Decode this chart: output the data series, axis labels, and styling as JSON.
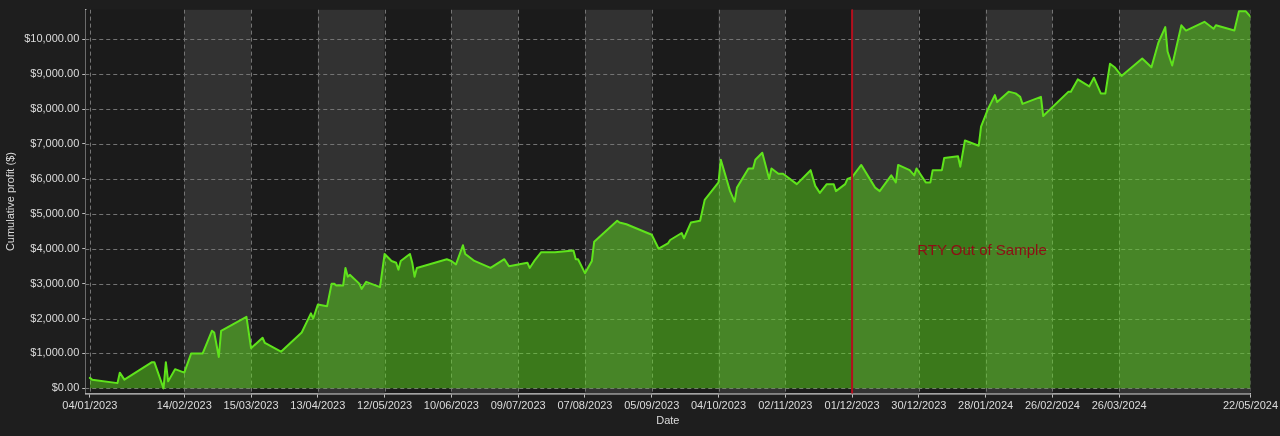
{
  "chart_data": {
    "type": "area",
    "xlabel": "Date",
    "ylabel": "Cumulative profit ($)",
    "color": "#5fe31c",
    "x": [
      "2023-01-04",
      "2023-01-05",
      "2023-01-16",
      "2023-01-17",
      "2023-01-19",
      "2023-01-31",
      "2023-02-01",
      "2023-02-05",
      "2023-02-06",
      "2023-02-07",
      "2023-02-10",
      "2023-02-14",
      "2023-02-17",
      "2023-02-22",
      "2023-02-26",
      "2023-02-27",
      "2023-03-01",
      "2023-03-02",
      "2023-03-13",
      "2023-03-15",
      "2023-03-20",
      "2023-03-21",
      "2023-03-28",
      "2023-04-06",
      "2023-04-10",
      "2023-04-11",
      "2023-04-13",
      "2023-04-17",
      "2023-04-19",
      "2023-04-20",
      "2023-04-21",
      "2023-04-24",
      "2023-04-25",
      "2023-04-26",
      "2023-04-27",
      "2023-05-01",
      "2023-05-02",
      "2023-05-04",
      "2023-05-10",
      "2023-05-12",
      "2023-05-15",
      "2023-05-17",
      "2023-05-18",
      "2023-05-19",
      "2023-05-23",
      "2023-05-24",
      "2023-05-25",
      "2023-05-26",
      "2023-06-08",
      "2023-06-10",
      "2023-06-12",
      "2023-06-15",
      "2023-06-16",
      "2023-06-20",
      "2023-06-27",
      "2023-07-03",
      "2023-07-05",
      "2023-07-13",
      "2023-07-14",
      "2023-07-16",
      "2023-07-19",
      "2023-07-25",
      "2023-08-02",
      "2023-08-03",
      "2023-08-04",
      "2023-08-07",
      "2023-08-10",
      "2023-08-11",
      "2023-08-21",
      "2023-08-22",
      "2023-08-25",
      "2023-09-05",
      "2023-09-08",
      "2023-09-12",
      "2023-09-13",
      "2023-09-18",
      "2023-09-19",
      "2023-09-22",
      "2023-09-26",
      "2023-09-28",
      "2023-10-04",
      "2023-10-05",
      "2023-10-09",
      "2023-10-11",
      "2023-10-12",
      "2023-10-17",
      "2023-10-19",
      "2023-10-20",
      "2023-10-23",
      "2023-10-24",
      "2023-10-26",
      "2023-10-27",
      "2023-10-30",
      "2023-11-01",
      "2023-11-07",
      "2023-11-13",
      "2023-11-15",
      "2023-11-17",
      "2023-11-20",
      "2023-11-23",
      "2023-11-24",
      "2023-11-28",
      "2023-11-29",
      "2023-12-01",
      "2023-12-05",
      "2023-12-11",
      "2023-12-13",
      "2023-12-18",
      "2023-12-20",
      "2023-12-21",
      "2023-12-26",
      "2023-12-28",
      "2023-12-29",
      "2024-01-02",
      "2024-01-04",
      "2024-01-05",
      "2024-01-09",
      "2024-01-10",
      "2024-01-16",
      "2024-01-17",
      "2024-01-19",
      "2024-01-25",
      "2024-01-26",
      "2024-01-29",
      "2024-02-01",
      "2024-02-02",
      "2024-02-07",
      "2024-02-10",
      "2024-02-12",
      "2024-02-13",
      "2024-02-21",
      "2024-02-22",
      "2024-03-04",
      "2024-03-05",
      "2024-03-08",
      "2024-03-13",
      "2024-03-15",
      "2024-03-18",
      "2024-03-20",
      "2024-03-22",
      "2024-03-24",
      "2024-03-27",
      "2024-04-05",
      "2024-04-09",
      "2024-04-12",
      "2024-04-15",
      "2024-04-16",
      "2024-04-18",
      "2024-04-22",
      "2024-04-24",
      "2024-05-02",
      "2024-05-06",
      "2024-05-07",
      "2024-05-15",
      "2024-05-17",
      "2024-05-20",
      "2024-05-22"
    ],
    "values": [
      300,
      250,
      150,
      450,
      250,
      750,
      750,
      0,
      750,
      200,
      550,
      450,
      1000,
      1000,
      1650,
      1600,
      900,
      1650,
      2050,
      1150,
      1450,
      1300,
      1050,
      1600,
      2150,
      2000,
      2400,
      2350,
      3000,
      3000,
      2950,
      2950,
      3450,
      3200,
      3250,
      3000,
      2850,
      3050,
      2900,
      3850,
      3650,
      3600,
      3400,
      3650,
      3850,
      3600,
      3200,
      3450,
      3700,
      3650,
      3550,
      4100,
      3850,
      3650,
      3450,
      3700,
      3500,
      3600,
      3450,
      3650,
      3900,
      3900,
      3950,
      3700,
      3700,
      3300,
      3650,
      4200,
      4800,
      4750,
      4700,
      4400,
      4000,
      4150,
      4250,
      4450,
      4300,
      4750,
      4800,
      5400,
      5900,
      6550,
      5650,
      5350,
      5750,
      6300,
      6300,
      6550,
      6750,
      6500,
      6000,
      6300,
      6150,
      6150,
      5850,
      6250,
      5800,
      5600,
      5850,
      5850,
      5650,
      5850,
      6000,
      6050,
      6400,
      5750,
      5650,
      6100,
      5900,
      6400,
      6250,
      6100,
      6300,
      5900,
      5900,
      6250,
      6250,
      6600,
      6650,
      6350,
      7100,
      6950,
      7500,
      8000,
      8400,
      8200,
      8500,
      8450,
      8350,
      8150,
      8350,
      7800,
      8500,
      8500,
      8850,
      8650,
      8900,
      8450,
      8450,
      9300,
      9200,
      8950,
      9450,
      9200,
      9900,
      10350,
      9650,
      9250,
      10400,
      10250,
      10500,
      10300,
      10400,
      10250,
      10800,
      10800,
      10650
    ],
    "xlim": [
      "2023-01-02",
      "2024-05-22"
    ],
    "xticks": [
      {
        "value": "2023-01-04",
        "label": "04/01/2023"
      },
      {
        "value": "2023-02-14",
        "label": "14/02/2023"
      },
      {
        "value": "2023-03-15",
        "label": "15/03/2023"
      },
      {
        "value": "2023-04-13",
        "label": "13/04/2023"
      },
      {
        "value": "2023-05-12",
        "label": "12/05/2023"
      },
      {
        "value": "2023-06-10",
        "label": "10/06/2023"
      },
      {
        "value": "2023-07-09",
        "label": "09/07/2023"
      },
      {
        "value": "2023-08-07",
        "label": "07/08/2023"
      },
      {
        "value": "2023-09-05",
        "label": "05/09/2023"
      },
      {
        "value": "2023-10-04",
        "label": "04/10/2023"
      },
      {
        "value": "2023-11-02",
        "label": "02/11/2023"
      },
      {
        "value": "2023-12-01",
        "label": "01/12/2023"
      },
      {
        "value": "2023-12-30",
        "label": "30/12/2023"
      },
      {
        "value": "2024-01-28",
        "label": "28/01/2024"
      },
      {
        "value": "2024-02-26",
        "label": "26/02/2024"
      },
      {
        "value": "2024-03-26",
        "label": "26/03/2024"
      },
      {
        "value": "2024-05-22",
        "label": "22/05/2024"
      }
    ],
    "ylim": [
      -150,
      10850
    ],
    "yticks": [
      {
        "value": 0,
        "label": "$0.00"
      },
      {
        "value": 1000,
        "label": "$1,000.00"
      },
      {
        "value": 2000,
        "label": "$2,000.00"
      },
      {
        "value": 3000,
        "label": "$3,000.00"
      },
      {
        "value": 4000,
        "label": "$4,000.00"
      },
      {
        "value": 5000,
        "label": "$5,000.00"
      },
      {
        "value": 6000,
        "label": "$6,000.00"
      },
      {
        "value": 7000,
        "label": "$7,000.00"
      },
      {
        "value": 8000,
        "label": "$8,000.00"
      },
      {
        "value": 9000,
        "label": "$9,000.00"
      },
      {
        "value": 10000,
        "label": "$10,000.00"
      }
    ],
    "grid": true,
    "ref_lines": [
      {
        "axis": "x",
        "value": "2023-12-01",
        "color": "#b3101e"
      }
    ],
    "annotations": [
      "RTY Out of Sample"
    ]
  }
}
